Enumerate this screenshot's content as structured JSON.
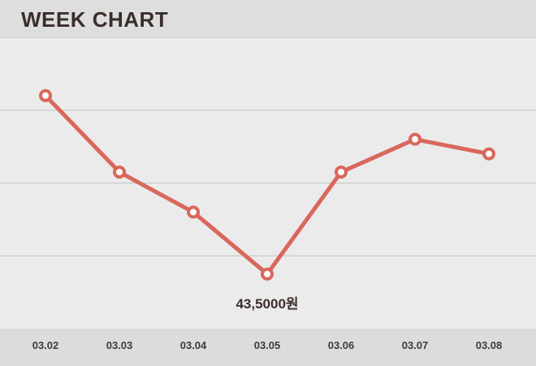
{
  "chart_data": {
    "type": "line",
    "title": "WEEK CHART",
    "categories": [
      "03.02",
      "03.03",
      "03.04",
      "03.05",
      "03.06",
      "03.07",
      "03.08"
    ],
    "series": [
      {
        "values": [
          48.4,
          46.3,
          45.2,
          43.5,
          46.3,
          47.2,
          46.8
        ]
      }
    ],
    "ylim": [
      42,
      50
    ],
    "grid": true,
    "annotations": [
      {
        "category": "03.05",
        "text": "43,5000원"
      }
    ]
  },
  "colors": {
    "line": "#d9675b",
    "marker_fill": "#ffffff",
    "grid": "#c4c4c4"
  }
}
